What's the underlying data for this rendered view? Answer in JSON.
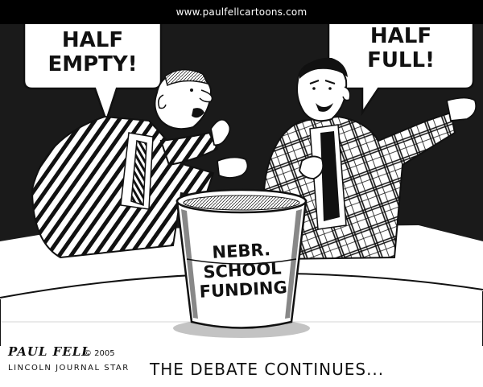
{
  "header": {
    "url": "www.paulfellcartoons.com"
  },
  "bubbles": {
    "left": {
      "line1": "HALF",
      "line2": "EMPTY!"
    },
    "right": {
      "line1": "HALF",
      "line2": "FULL!"
    }
  },
  "bucket": {
    "line1": "NEBR.",
    "line2": "SCHOOL",
    "line3": "FUNDING"
  },
  "caption": "THE DEBATE CONTINUES...",
  "credit": {
    "signature": "PAUL FELL",
    "year": "© 2005",
    "paper": "LINCOLN JOURNAL STAR"
  },
  "colors": {
    "ink": "#111111",
    "paper": "#ffffff",
    "wall": "#1a1a1a"
  }
}
